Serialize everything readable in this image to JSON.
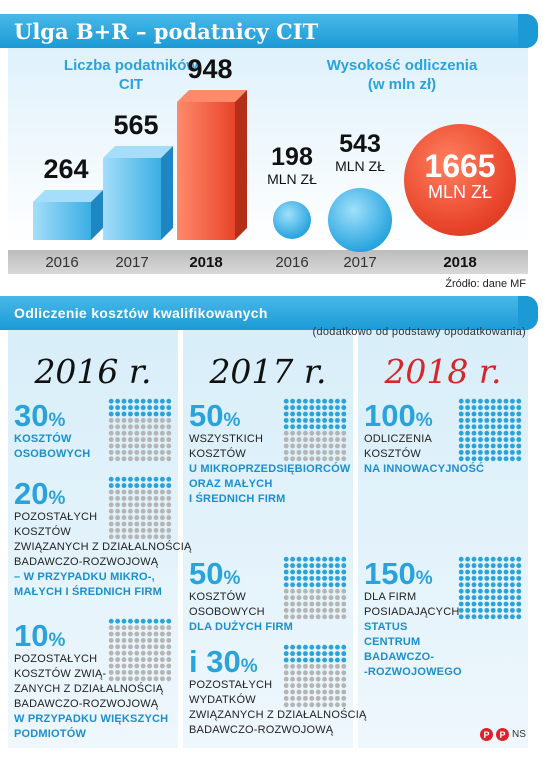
{
  "title": "Ulga B+R – podatnicy CIT",
  "section2_title": "Odliczenie kosztów kwalifikowanych",
  "source": "Źródło: dane MF",
  "subnote": "(dodatkowo od podstawy opodatkowania)",
  "logo_text": "NS",
  "logo_mark": "P",
  "chart_data": [
    {
      "type": "bar",
      "title": "Liczba podatników CIT",
      "categories": [
        "2016",
        "2017",
        "2018"
      ],
      "values": [
        264,
        565,
        948
      ],
      "highlight": "2018",
      "colors": {
        "normal": "#3aaee3",
        "highlight": "#e8442a"
      }
    },
    {
      "type": "bubble",
      "title": "Wysokość odliczenia (w mln zł)",
      "categories": [
        "2016",
        "2017",
        "2018"
      ],
      "values": [
        198,
        543,
        1665
      ],
      "unit": "MLN ZŁ",
      "highlight": "2018",
      "colors": {
        "normal": "#2ba6df",
        "highlight": "#e8442a"
      }
    }
  ],
  "columns": [
    {
      "year": "2016 r.",
      "items": [
        {
          "pct": "30",
          "desc": [
            "kosztów",
            "osobowych"
          ],
          "hl_from": 0
        },
        {
          "pct": "20",
          "desc": [
            "pozostałych",
            "kosztów",
            "związanych z działalnością",
            "badawczo-rozwojową",
            "– w przypadku mikro-,",
            "małych i średnich firm"
          ],
          "hl_from": 4
        },
        {
          "pct": "10",
          "desc": [
            "pozostałych",
            "kosztów zwią-",
            "zanych z działalnością",
            "badawczo-rozwojową",
            "w przypadku większych",
            "podmiotów"
          ],
          "hl_from": 4
        }
      ]
    },
    {
      "year": "2017 r.",
      "items": [
        {
          "pct": "50",
          "desc": [
            "wszystkich",
            "kosztów",
            "u mikroprzedsiębiorców",
            "oraz małych",
            "i średnich firm"
          ],
          "hl_from": 2
        },
        {
          "pct": "50",
          "desc": [
            "kosztów",
            "osobowych",
            "dla dużych firm"
          ],
          "hl_from": 2
        },
        {
          "pct": "30",
          "prefix": "i",
          "desc": [
            "pozostałych",
            "wydatków",
            "związanych z działalnością",
            "badawczo-rozwojową"
          ],
          "hl_from": 99
        }
      ]
    },
    {
      "year": "2018 r.",
      "items": [
        {
          "pct": "100",
          "desc": [
            "odliczenia",
            "kosztów",
            "na innowacyjność"
          ],
          "hl_from": 2
        },
        {
          "pct": "150",
          "desc": [
            "dla firm",
            "posiadających",
            "status",
            "centrum",
            "badawczo-",
            "-rozwojowego"
          ],
          "hl_from": 2
        }
      ]
    }
  ]
}
